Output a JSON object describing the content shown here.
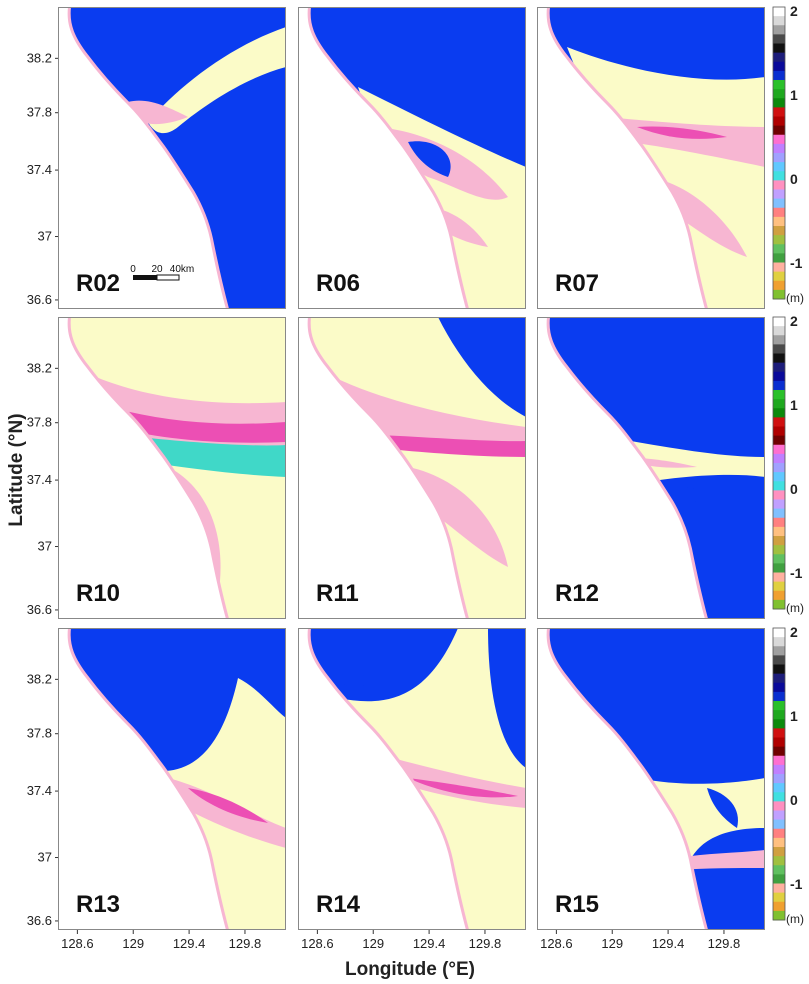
{
  "figure": {
    "axes": {
      "ylabel": "Latitude (°N)",
      "xlabel": "Longitude (°E)",
      "lat_ticks": [
        "38.2",
        "37.8",
        "37.4",
        "37",
        "36.6"
      ],
      "lon_ticks": [
        "128.6",
        "129",
        "129.4",
        "129.8"
      ]
    },
    "scale_bar": {
      "labels": [
        "0",
        "20",
        "40km"
      ]
    },
    "colorbar": {
      "tick_labels": [
        "2",
        "1",
        "0",
        "-1",
        "(m)"
      ],
      "range": [
        -1.5,
        2
      ]
    },
    "panels": [
      {
        "label": "R02"
      },
      {
        "label": "R06"
      },
      {
        "label": "R07"
      },
      {
        "label": "R10"
      },
      {
        "label": "R11"
      },
      {
        "label": "R12"
      },
      {
        "label": "R13"
      },
      {
        "label": "R14"
      },
      {
        "label": "R15"
      }
    ],
    "colors": {
      "sea": "#0a3cf0",
      "land": "#ffffff",
      "low": "#fbfbc8",
      "mid": "#f7b6d2",
      "high": "#ec4fb4",
      "cyan": "#40d8c8"
    }
  }
}
